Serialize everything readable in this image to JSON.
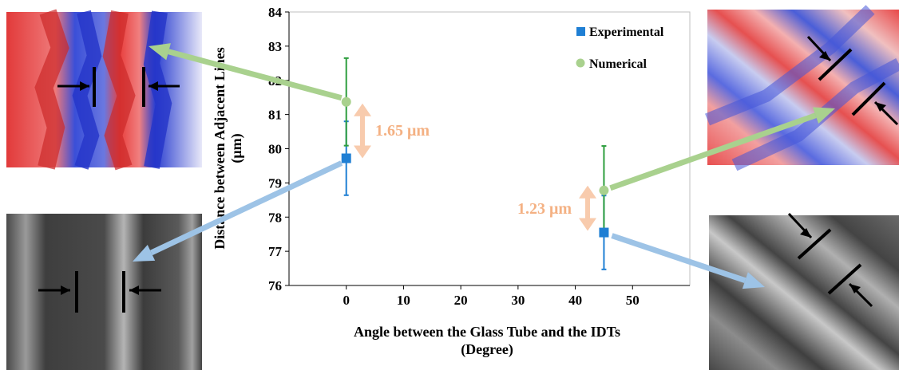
{
  "chart_data": {
    "type": "scatter",
    "xlabel": [
      "Angle between the Glass Tube and the IDTs",
      "(Degree)"
    ],
    "ylabel": [
      "Distance between Adjacent Lines",
      "(μm)"
    ],
    "xlim": [
      -10,
      60
    ],
    "ylim": [
      76,
      84
    ],
    "x_ticks": [
      0,
      10,
      20,
      30,
      40,
      50
    ],
    "y_ticks": [
      76,
      77,
      78,
      79,
      80,
      81,
      82,
      83,
      84
    ],
    "grid": false,
    "legend_position": "top-right",
    "series": [
      {
        "name": "Experimental",
        "marker": "square",
        "color": "#1f7fd4",
        "errorbar_color": "#1f7fd4",
        "x": [
          0,
          45
        ],
        "y": [
          79.72,
          77.55
        ],
        "error": [
          1.08,
          1.08
        ]
      },
      {
        "name": "Numerical",
        "marker": "circle",
        "color": "#a9d18e",
        "errorbar_color": "#2e9e3e",
        "x": [
          0,
          45
        ],
        "y": [
          81.37,
          78.78
        ],
        "error": [
          1.28,
          1.3
        ]
      }
    ],
    "annotations": [
      {
        "text": "1.65 μm",
        "color": "#f4b183"
      },
      {
        "text": "1.23 μm",
        "color": "#f4b183"
      }
    ]
  },
  "images": {
    "top_left": "simulated-field-map-red-blue",
    "top_right": "simulated-field-map-red-blue-tilted",
    "bottom_left": "micrograph-grayscale-vertical-lines",
    "bottom_right": "micrograph-grayscale-tilted-lines"
  },
  "colors": {
    "green_arrow": "#a9d18e",
    "blue_arrow": "#9dc3e6",
    "annotation_arrow": "#f8cbad"
  }
}
